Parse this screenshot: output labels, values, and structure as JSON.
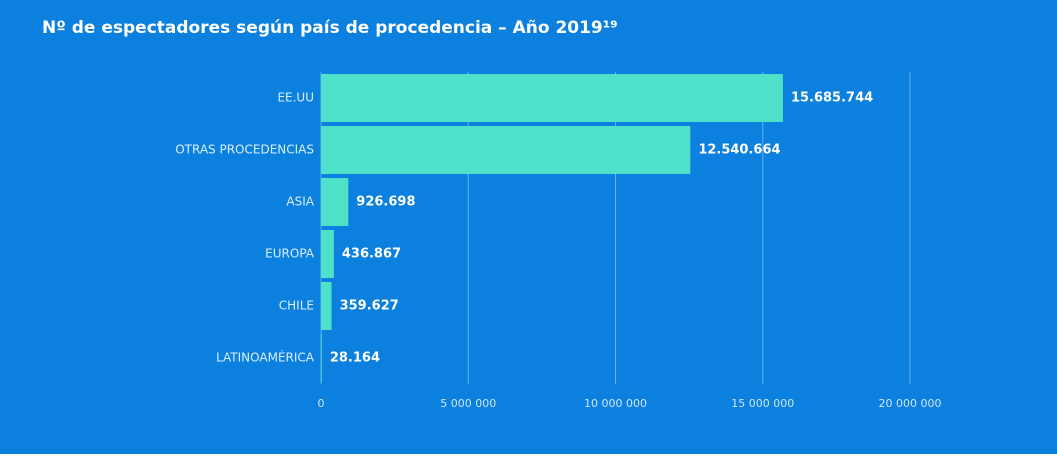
{
  "chart_data": {
    "type": "bar",
    "orientation": "horizontal",
    "title": "Nº de espectadores según país de procedencia – Año 2019¹⁹",
    "categories": [
      "EE.UU",
      "OTRAS PROCEDENCIAS",
      "ASIA",
      "EUROPA",
      "CHILE",
      "LATINOAMÉRICA"
    ],
    "values": [
      15685744,
      12540664,
      926698,
      436867,
      359627,
      28164
    ],
    "value_labels": [
      "15.685.744",
      "12.540.664",
      "926.698",
      "436.867",
      "359.627",
      "28.164"
    ],
    "color": "#4fe0c9",
    "xlim": [
      0,
      20000000
    ],
    "xticks": [
      0,
      {
        "value": 5000000,
        "label": "5 000 000"
      },
      {
        "value": 10000000,
        "label": "10 000 000"
      },
      {
        "value": 15000000,
        "label": "15 000 000"
      },
      {
        "value": 20000000,
        "label": "20 000 000"
      }
    ],
    "grid": true
  }
}
